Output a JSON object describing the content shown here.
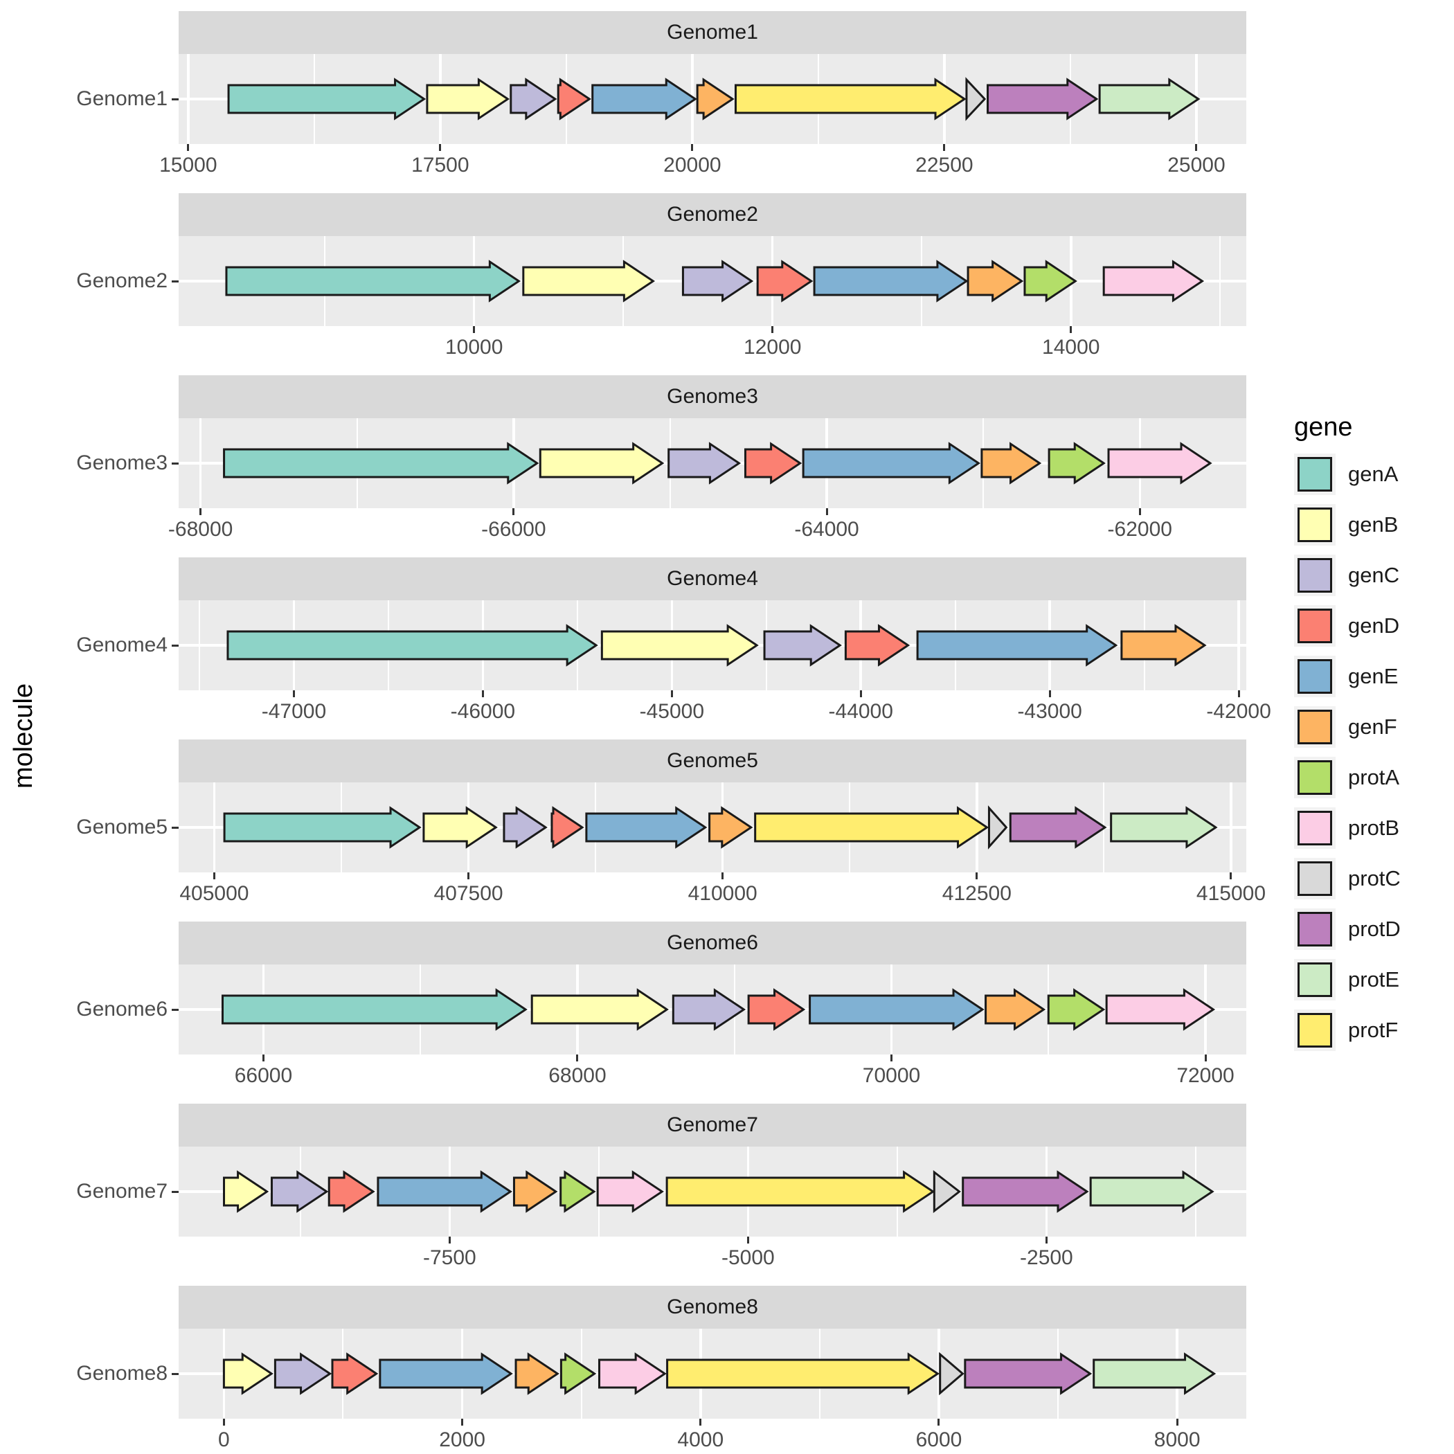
{
  "chart_data": {
    "type": "gene_arrow_map",
    "title": "",
    "xlabel": "",
    "ylabel": "molecule",
    "grid": "on",
    "legend": {
      "title": "gene",
      "position": "right",
      "entries": [
        {
          "label": "genA",
          "color": "#8DD3C7"
        },
        {
          "label": "genB",
          "color": "#FFFFB3"
        },
        {
          "label": "genC",
          "color": "#BEBADA"
        },
        {
          "label": "genD",
          "color": "#FB8072"
        },
        {
          "label": "genE",
          "color": "#80B1D3"
        },
        {
          "label": "genF",
          "color": "#FDB462"
        },
        {
          "label": "protA",
          "color": "#B3DE69"
        },
        {
          "label": "protB",
          "color": "#FCCDE5"
        },
        {
          "label": "protC",
          "color": "#D9D9D9"
        },
        {
          "label": "protD",
          "color": "#BC80BD"
        },
        {
          "label": "protE",
          "color": "#CCEBC5"
        },
        {
          "label": "protF",
          "color": "#FFED6F"
        }
      ]
    },
    "style": {
      "panel_bg": "#EBEBEB",
      "strip_bg": "#D9D9D9",
      "grid_color": "#FFFFFF",
      "axis_text_color": "#4D4D4D",
      "strip_text_color": "#1A1A1A",
      "tick_color": "#333333",
      "arrow_outline": "#1A1A1A",
      "background": "#FFFFFF",
      "legend_key_bg": "#F2F2F2"
    },
    "facets": [
      {
        "molecule": "Genome1",
        "xlim": [
          14905,
          25495
        ],
        "ticks": [
          15000,
          17500,
          20000,
          22500,
          25000
        ],
        "genes": [
          {
            "gene": "genA",
            "start": 15400,
            "end": 17340,
            "strand": "forward"
          },
          {
            "gene": "genB",
            "start": 17370,
            "end": 18170,
            "strand": "forward"
          },
          {
            "gene": "genC",
            "start": 18200,
            "end": 18640,
            "strand": "forward"
          },
          {
            "gene": "genD",
            "start": 18670,
            "end": 18980,
            "strand": "forward"
          },
          {
            "gene": "genE",
            "start": 19010,
            "end": 20030,
            "strand": "forward"
          },
          {
            "gene": "genF",
            "start": 20050,
            "end": 20400,
            "strand": "forward"
          },
          {
            "gene": "protF",
            "start": 20430,
            "end": 22700,
            "strand": "forward"
          },
          {
            "gene": "protC",
            "start": 22720,
            "end": 22900,
            "strand": "forward"
          },
          {
            "gene": "protD",
            "start": 22930,
            "end": 24010,
            "strand": "forward"
          },
          {
            "gene": "protE",
            "start": 24040,
            "end": 25020,
            "strand": "forward"
          }
        ]
      },
      {
        "molecule": "Genome2",
        "xlim": [
          8020,
          15175
        ],
        "ticks": [
          10000,
          12000,
          14000
        ],
        "genes": [
          {
            "gene": "genA",
            "start": 8340,
            "end": 10300,
            "strand": "forward"
          },
          {
            "gene": "genB",
            "start": 10330,
            "end": 11200,
            "strand": "forward"
          },
          {
            "gene": "genC",
            "start": 11400,
            "end": 11860,
            "strand": "forward"
          },
          {
            "gene": "genD",
            "start": 11900,
            "end": 12260,
            "strand": "forward"
          },
          {
            "gene": "genE",
            "start": 12280,
            "end": 13300,
            "strand": "forward"
          },
          {
            "gene": "genF",
            "start": 13310,
            "end": 13670,
            "strand": "forward"
          },
          {
            "gene": "protA",
            "start": 13690,
            "end": 14030,
            "strand": "forward"
          },
          {
            "gene": "protB",
            "start": 14220,
            "end": 14880,
            "strand": "forward"
          }
        ]
      },
      {
        "molecule": "Genome3",
        "xlim": [
          -68140,
          -61320
        ],
        "ticks": [
          -68000,
          -66000,
          -64000,
          -62000
        ],
        "genes": [
          {
            "gene": "genA",
            "start": -67850,
            "end": -65850,
            "strand": "forward"
          },
          {
            "gene": "genB",
            "start": -65830,
            "end": -65050,
            "strand": "forward"
          },
          {
            "gene": "genC",
            "start": -65010,
            "end": -64560,
            "strand": "forward"
          },
          {
            "gene": "genD",
            "start": -64520,
            "end": -64170,
            "strand": "forward"
          },
          {
            "gene": "genE",
            "start": -64150,
            "end": -63030,
            "strand": "forward"
          },
          {
            "gene": "genF",
            "start": -63010,
            "end": -62640,
            "strand": "forward"
          },
          {
            "gene": "protA",
            "start": -62580,
            "end": -62230,
            "strand": "forward"
          },
          {
            "gene": "protB",
            "start": -62200,
            "end": -61550,
            "strand": "forward"
          }
        ]
      },
      {
        "molecule": "Genome4",
        "xlim": [
          -47610,
          -41960
        ],
        "ticks": [
          -47000,
          -46000,
          -45000,
          -44000,
          -43000,
          -42000
        ],
        "genes": [
          {
            "gene": "genA",
            "start": -47350,
            "end": -45400,
            "strand": "forward"
          },
          {
            "gene": "genB",
            "start": -45370,
            "end": -44550,
            "strand": "forward"
          },
          {
            "gene": "genC",
            "start": -44510,
            "end": -44110,
            "strand": "forward"
          },
          {
            "gene": "genD",
            "start": -44080,
            "end": -43750,
            "strand": "forward"
          },
          {
            "gene": "genE",
            "start": -43700,
            "end": -42650,
            "strand": "forward"
          },
          {
            "gene": "genF",
            "start": -42620,
            "end": -42180,
            "strand": "forward"
          }
        ]
      },
      {
        "molecule": "Genome5",
        "xlim": [
          404650,
          415150
        ],
        "ticks": [
          405000,
          407500,
          410000,
          412500,
          415000
        ],
        "genes": [
          {
            "gene": "genA",
            "start": 405100,
            "end": 407020,
            "strand": "forward"
          },
          {
            "gene": "genB",
            "start": 407060,
            "end": 407770,
            "strand": "forward"
          },
          {
            "gene": "genC",
            "start": 407850,
            "end": 408260,
            "strand": "forward"
          },
          {
            "gene": "genD",
            "start": 408320,
            "end": 408620,
            "strand": "forward"
          },
          {
            "gene": "genE",
            "start": 408660,
            "end": 409830,
            "strand": "forward"
          },
          {
            "gene": "genF",
            "start": 409870,
            "end": 410280,
            "strand": "forward"
          },
          {
            "gene": "protF",
            "start": 410320,
            "end": 412600,
            "strand": "forward"
          },
          {
            "gene": "protC",
            "start": 412620,
            "end": 412790,
            "strand": "forward"
          },
          {
            "gene": "protD",
            "start": 412830,
            "end": 413760,
            "strand": "forward"
          },
          {
            "gene": "protE",
            "start": 413820,
            "end": 414850,
            "strand": "forward"
          }
        ]
      },
      {
        "molecule": "Genome6",
        "xlim": [
          65460,
          72260
        ],
        "ticks": [
          66000,
          68000,
          70000,
          72000
        ],
        "genes": [
          {
            "gene": "genA",
            "start": 65740,
            "end": 67670,
            "strand": "forward"
          },
          {
            "gene": "genB",
            "start": 67710,
            "end": 68570,
            "strand": "forward"
          },
          {
            "gene": "genC",
            "start": 68610,
            "end": 69060,
            "strand": "forward"
          },
          {
            "gene": "genD",
            "start": 69090,
            "end": 69440,
            "strand": "forward"
          },
          {
            "gene": "genE",
            "start": 69480,
            "end": 70580,
            "strand": "forward"
          },
          {
            "gene": "genF",
            "start": 70600,
            "end": 70970,
            "strand": "forward"
          },
          {
            "gene": "protA",
            "start": 71000,
            "end": 71350,
            "strand": "forward"
          },
          {
            "gene": "protB",
            "start": 71370,
            "end": 72050,
            "strand": "forward"
          }
        ]
      },
      {
        "molecule": "Genome7",
        "xlim": [
          -9770,
          -826
        ],
        "ticks": [
          -7500,
          -5000,
          -2500
        ],
        "genes": [
          {
            "gene": "genB",
            "start": -9390,
            "end": -9030,
            "strand": "forward"
          },
          {
            "gene": "genC",
            "start": -8990,
            "end": -8530,
            "strand": "forward"
          },
          {
            "gene": "genD",
            "start": -8510,
            "end": -8140,
            "strand": "forward"
          },
          {
            "gene": "genE",
            "start": -8100,
            "end": -6990,
            "strand": "forward"
          },
          {
            "gene": "genF",
            "start": -6960,
            "end": -6610,
            "strand": "forward"
          },
          {
            "gene": "protA",
            "start": -6570,
            "end": -6290,
            "strand": "forward"
          },
          {
            "gene": "protB",
            "start": -6260,
            "end": -5720,
            "strand": "forward"
          },
          {
            "gene": "protF",
            "start": -5680,
            "end": -3450,
            "strand": "forward"
          },
          {
            "gene": "protC",
            "start": -3440,
            "end": -3230,
            "strand": "forward"
          },
          {
            "gene": "protD",
            "start": -3200,
            "end": -2160,
            "strand": "forward"
          },
          {
            "gene": "protE",
            "start": -2130,
            "end": -1110,
            "strand": "forward"
          }
        ]
      },
      {
        "molecule": "Genome8",
        "xlim": [
          -380,
          8580
        ],
        "ticks": [
          0,
          2000,
          4000,
          6000,
          8000
        ],
        "genes": [
          {
            "gene": "genB",
            "start": 0,
            "end": 400,
            "strand": "forward"
          },
          {
            "gene": "genC",
            "start": 430,
            "end": 890,
            "strand": "forward"
          },
          {
            "gene": "genD",
            "start": 910,
            "end": 1280,
            "strand": "forward"
          },
          {
            "gene": "genE",
            "start": 1310,
            "end": 2410,
            "strand": "forward"
          },
          {
            "gene": "genF",
            "start": 2450,
            "end": 2800,
            "strand": "forward"
          },
          {
            "gene": "protA",
            "start": 2830,
            "end": 3110,
            "strand": "forward"
          },
          {
            "gene": "protB",
            "start": 3150,
            "end": 3700,
            "strand": "forward"
          },
          {
            "gene": "protF",
            "start": 3720,
            "end": 5990,
            "strand": "forward"
          },
          {
            "gene": "protC",
            "start": 6010,
            "end": 6200,
            "strand": "forward"
          },
          {
            "gene": "protD",
            "start": 6220,
            "end": 7270,
            "strand": "forward"
          },
          {
            "gene": "protE",
            "start": 7300,
            "end": 8310,
            "strand": "forward"
          }
        ]
      }
    ]
  }
}
